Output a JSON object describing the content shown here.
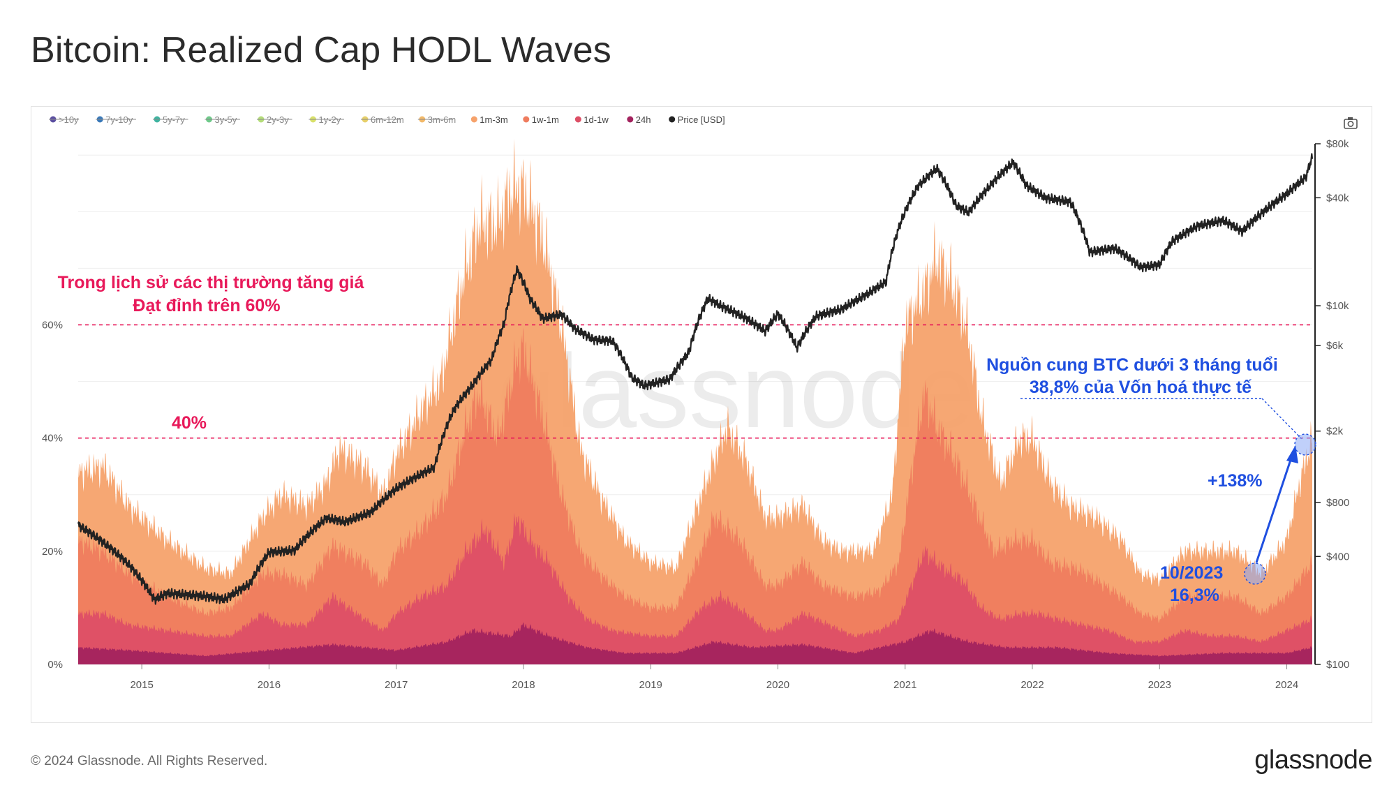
{
  "page": {
    "title": "Bitcoin: Realized Cap HODL Waves",
    "copyright": "© 2024 Glassnode. All Rights Reserved.",
    "brand": "glassnode",
    "watermark": "glassnode"
  },
  "legend": [
    {
      "label": ">10y",
      "color": "#5b4fa0",
      "active": false
    },
    {
      "label": "7y-10y",
      "color": "#3a79b8",
      "active": false
    },
    {
      "label": "5y-7y",
      "color": "#3fb3a0",
      "active": false
    },
    {
      "label": "3y-5y",
      "color": "#6fc98a",
      "active": false
    },
    {
      "label": "2y-3y",
      "color": "#b4dc7a",
      "active": false
    },
    {
      "label": "1y-2y",
      "color": "#d8e06a",
      "active": false
    },
    {
      "label": "6m-12m",
      "color": "#e6cf6a",
      "active": false
    },
    {
      "label": "3m-6m",
      "color": "#f2b96a",
      "active": false
    },
    {
      "label": "1m-3m",
      "color": "#f6a26b",
      "active": true
    },
    {
      "label": "1w-1m",
      "color": "#ef7c5e",
      "active": true
    },
    {
      "label": "1d-1w",
      "color": "#dd4f66",
      "active": true
    },
    {
      "label": "24h",
      "color": "#a3235e",
      "active": true
    },
    {
      "label": "Price [USD]",
      "color": "#222222",
      "active": true
    }
  ],
  "annotations": {
    "peak_line1": "Trong lịch sử các thị trường tăng giá",
    "peak_line2": "Đạt đỉnh trên 60%",
    "level40": "40%",
    "supply_line1": "Nguồn cung BTC dưới 3 tháng tuổi",
    "supply_line2": "38,8% của Vốn hoá thực tế",
    "change": "+138%",
    "low_date": "10/2023",
    "low_value": "16,3%"
  },
  "chart_data": {
    "type": "area",
    "x_ticks": [
      "2015",
      "2016",
      "2017",
      "2018",
      "2019",
      "2020",
      "2021",
      "2022",
      "2023",
      "2024"
    ],
    "x_range": [
      2014.5,
      2024.2
    ],
    "y_left": {
      "ticks": [
        "0%",
        "20%",
        "40%",
        "60%"
      ],
      "range": [
        0,
        92
      ]
    },
    "y_right": {
      "scale": "log",
      "ticks": [
        "$100",
        "$400",
        "$800",
        "$2k",
        "$6k",
        "$10k",
        "$40k",
        "$80k"
      ],
      "range": [
        100,
        80000
      ]
    },
    "reference_lines": [
      60,
      40
    ],
    "series": [
      {
        "name": "1m-3m",
        "color": "#f6a26b",
        "points": [
          [
            2014.5,
            34
          ],
          [
            2014.7,
            35
          ],
          [
            2014.9,
            28
          ],
          [
            2015.2,
            22
          ],
          [
            2015.5,
            17
          ],
          [
            2015.7,
            16
          ],
          [
            2015.95,
            26
          ],
          [
            2016.1,
            30
          ],
          [
            2016.3,
            28
          ],
          [
            2016.45,
            32
          ],
          [
            2016.55,
            38
          ],
          [
            2016.75,
            35
          ],
          [
            2016.9,
            30
          ],
          [
            2017.0,
            37
          ],
          [
            2017.2,
            45
          ],
          [
            2017.35,
            50
          ],
          [
            2017.5,
            66
          ],
          [
            2017.65,
            78
          ],
          [
            2017.8,
            78
          ],
          [
            2017.9,
            84
          ],
          [
            2018.0,
            84
          ],
          [
            2018.15,
            76
          ],
          [
            2018.3,
            60
          ],
          [
            2018.45,
            38
          ],
          [
            2018.6,
            30
          ],
          [
            2018.8,
            22
          ],
          [
            2019.0,
            18
          ],
          [
            2019.2,
            17
          ],
          [
            2019.4,
            30
          ],
          [
            2019.6,
            42
          ],
          [
            2019.75,
            36
          ],
          [
            2019.9,
            26
          ],
          [
            2020.0,
            26
          ],
          [
            2020.2,
            28
          ],
          [
            2020.35,
            22
          ],
          [
            2020.5,
            20
          ],
          [
            2020.75,
            20
          ],
          [
            2020.9,
            30
          ],
          [
            2021.0,
            60
          ],
          [
            2021.15,
            66
          ],
          [
            2021.25,
            72
          ],
          [
            2021.4,
            66
          ],
          [
            2021.5,
            58
          ],
          [
            2021.6,
            44
          ],
          [
            2021.75,
            32
          ],
          [
            2021.9,
            40
          ],
          [
            2022.0,
            40
          ],
          [
            2022.15,
            32
          ],
          [
            2022.3,
            28
          ],
          [
            2022.5,
            26
          ],
          [
            2022.7,
            22
          ],
          [
            2022.85,
            16
          ],
          [
            2023.0,
            15
          ],
          [
            2023.2,
            20
          ],
          [
            2023.4,
            20
          ],
          [
            2023.6,
            20
          ],
          [
            2023.8,
            16
          ],
          [
            2024.0,
            22
          ],
          [
            2024.1,
            32
          ],
          [
            2024.2,
            40
          ]
        ]
      },
      {
        "name": "1w-1m",
        "color": "#ef7c5e",
        "points": [
          [
            2014.5,
            22
          ],
          [
            2014.7,
            20
          ],
          [
            2014.9,
            16
          ],
          [
            2015.2,
            12
          ],
          [
            2015.5,
            9
          ],
          [
            2015.7,
            10
          ],
          [
            2015.95,
            16
          ],
          [
            2016.1,
            16
          ],
          [
            2016.3,
            14
          ],
          [
            2016.5,
            21
          ],
          [
            2016.75,
            18
          ],
          [
            2016.9,
            14
          ],
          [
            2017.0,
            20
          ],
          [
            2017.2,
            24
          ],
          [
            2017.4,
            30
          ],
          [
            2017.55,
            42
          ],
          [
            2017.65,
            48
          ],
          [
            2017.8,
            40
          ],
          [
            2017.95,
            54
          ],
          [
            2018.0,
            56
          ],
          [
            2018.15,
            44
          ],
          [
            2018.3,
            30
          ],
          [
            2018.45,
            20
          ],
          [
            2018.6,
            16
          ],
          [
            2018.8,
            12
          ],
          [
            2019.0,
            10
          ],
          [
            2019.2,
            10
          ],
          [
            2019.4,
            20
          ],
          [
            2019.5,
            26
          ],
          [
            2019.7,
            22
          ],
          [
            2019.9,
            14
          ],
          [
            2020.0,
            14
          ],
          [
            2020.2,
            18
          ],
          [
            2020.35,
            14
          ],
          [
            2020.6,
            12
          ],
          [
            2020.8,
            13
          ],
          [
            2020.95,
            18
          ],
          [
            2021.05,
            34
          ],
          [
            2021.15,
            48
          ],
          [
            2021.25,
            42
          ],
          [
            2021.4,
            36
          ],
          [
            2021.55,
            28
          ],
          [
            2021.7,
            20
          ],
          [
            2021.85,
            22
          ],
          [
            2022.0,
            22
          ],
          [
            2022.15,
            18
          ],
          [
            2022.35,
            17
          ],
          [
            2022.5,
            15
          ],
          [
            2022.7,
            12
          ],
          [
            2022.85,
            9
          ],
          [
            2023.0,
            8
          ],
          [
            2023.2,
            12
          ],
          [
            2023.4,
            12
          ],
          [
            2023.6,
            12
          ],
          [
            2023.8,
            9
          ],
          [
            2024.0,
            12
          ],
          [
            2024.1,
            15
          ],
          [
            2024.2,
            18
          ]
        ]
      },
      {
        "name": "1d-1w",
        "color": "#dd4f66",
        "points": [
          [
            2014.5,
            9
          ],
          [
            2014.7,
            9
          ],
          [
            2014.9,
            7
          ],
          [
            2015.2,
            6
          ],
          [
            2015.5,
            5
          ],
          [
            2015.7,
            5
          ],
          [
            2015.95,
            9
          ],
          [
            2016.1,
            7
          ],
          [
            2016.3,
            7
          ],
          [
            2016.5,
            12
          ],
          [
            2016.75,
            8
          ],
          [
            2016.9,
            6
          ],
          [
            2017.0,
            9
          ],
          [
            2017.2,
            12
          ],
          [
            2017.4,
            14
          ],
          [
            2017.55,
            20
          ],
          [
            2017.7,
            24
          ],
          [
            2017.85,
            18
          ],
          [
            2017.95,
            26
          ],
          [
            2018.05,
            22
          ],
          [
            2018.2,
            18
          ],
          [
            2018.35,
            12
          ],
          [
            2018.5,
            8
          ],
          [
            2018.7,
            6
          ],
          [
            2019.0,
            5
          ],
          [
            2019.2,
            5
          ],
          [
            2019.4,
            10
          ],
          [
            2019.55,
            12
          ],
          [
            2019.75,
            9
          ],
          [
            2019.9,
            6
          ],
          [
            2020.0,
            6
          ],
          [
            2020.2,
            9
          ],
          [
            2020.4,
            7
          ],
          [
            2020.6,
            5
          ],
          [
            2020.8,
            6
          ],
          [
            2020.95,
            8
          ],
          [
            2021.05,
            14
          ],
          [
            2021.15,
            20
          ],
          [
            2021.3,
            17
          ],
          [
            2021.45,
            15
          ],
          [
            2021.6,
            10
          ],
          [
            2021.75,
            8
          ],
          [
            2021.9,
            9
          ],
          [
            2022.05,
            9
          ],
          [
            2022.2,
            8
          ],
          [
            2022.4,
            7
          ],
          [
            2022.6,
            6
          ],
          [
            2022.8,
            4
          ],
          [
            2023.0,
            4
          ],
          [
            2023.2,
            6
          ],
          [
            2023.4,
            5
          ],
          [
            2023.6,
            5
          ],
          [
            2023.8,
            4
          ],
          [
            2024.0,
            6
          ],
          [
            2024.1,
            7
          ],
          [
            2024.2,
            8
          ]
        ]
      },
      {
        "name": "24h",
        "color": "#a3235e",
        "points": [
          [
            2014.5,
            3
          ],
          [
            2014.9,
            2.5
          ],
          [
            2015.5,
            1.5
          ],
          [
            2016.0,
            2.5
          ],
          [
            2016.5,
            3.5
          ],
          [
            2017.0,
            2.5
          ],
          [
            2017.4,
            4
          ],
          [
            2017.6,
            6
          ],
          [
            2017.9,
            5
          ],
          [
            2018.0,
            7
          ],
          [
            2018.2,
            5
          ],
          [
            2018.5,
            3
          ],
          [
            2018.8,
            2
          ],
          [
            2019.2,
            2
          ],
          [
            2019.5,
            4
          ],
          [
            2019.8,
            3
          ],
          [
            2020.2,
            3.5
          ],
          [
            2020.6,
            2
          ],
          [
            2021.0,
            4
          ],
          [
            2021.2,
            6
          ],
          [
            2021.5,
            4
          ],
          [
            2021.8,
            3
          ],
          [
            2022.2,
            3
          ],
          [
            2022.6,
            2
          ],
          [
            2023.0,
            1.5
          ],
          [
            2023.5,
            2
          ],
          [
            2024.0,
            2
          ],
          [
            2024.2,
            3
          ]
        ]
      }
    ],
    "price_series": {
      "name": "Price [USD]",
      "color": "#222222",
      "points": [
        [
          2014.5,
          600
        ],
        [
          2014.7,
          480
        ],
        [
          2014.9,
          360
        ],
        [
          2015.1,
          230
        ],
        [
          2015.2,
          250
        ],
        [
          2015.5,
          240
        ],
        [
          2015.65,
          230
        ],
        [
          2015.85,
          280
        ],
        [
          2016.0,
          420
        ],
        [
          2016.2,
          430
        ],
        [
          2016.45,
          650
        ],
        [
          2016.6,
          620
        ],
        [
          2016.8,
          700
        ],
        [
          2017.0,
          950
        ],
        [
          2017.15,
          1100
        ],
        [
          2017.3,
          1250
        ],
        [
          2017.45,
          2600
        ],
        [
          2017.6,
          3600
        ],
        [
          2017.75,
          5000
        ],
        [
          2017.85,
          8000
        ],
        [
          2017.95,
          16000
        ],
        [
          2018.05,
          11000
        ],
        [
          2018.15,
          8500
        ],
        [
          2018.3,
          9000
        ],
        [
          2018.4,
          7500
        ],
        [
          2018.55,
          6500
        ],
        [
          2018.7,
          6400
        ],
        [
          2018.85,
          4000
        ],
        [
          2018.95,
          3600
        ],
        [
          2019.15,
          3900
        ],
        [
          2019.3,
          5500
        ],
        [
          2019.45,
          11000
        ],
        [
          2019.55,
          10000
        ],
        [
          2019.75,
          8500
        ],
        [
          2019.9,
          7200
        ],
        [
          2020.0,
          9000
        ],
        [
          2020.15,
          5800
        ],
        [
          2020.3,
          8700
        ],
        [
          2020.5,
          9500
        ],
        [
          2020.7,
          11500
        ],
        [
          2020.85,
          13500
        ],
        [
          2020.95,
          27000
        ],
        [
          2021.1,
          46000
        ],
        [
          2021.25,
          58000
        ],
        [
          2021.4,
          36000
        ],
        [
          2021.5,
          33000
        ],
        [
          2021.65,
          45000
        ],
        [
          2021.85,
          63000
        ],
        [
          2021.95,
          47000
        ],
        [
          2022.1,
          40000
        ],
        [
          2022.3,
          38000
        ],
        [
          2022.45,
          20000
        ],
        [
          2022.65,
          21000
        ],
        [
          2022.85,
          16500
        ],
        [
          2023.0,
          17000
        ],
        [
          2023.1,
          23000
        ],
        [
          2023.3,
          28000
        ],
        [
          2023.5,
          30000
        ],
        [
          2023.65,
          26000
        ],
        [
          2023.85,
          35000
        ],
        [
          2024.0,
          42000
        ],
        [
          2024.15,
          52000
        ],
        [
          2024.2,
          67000
        ]
      ]
    }
  }
}
